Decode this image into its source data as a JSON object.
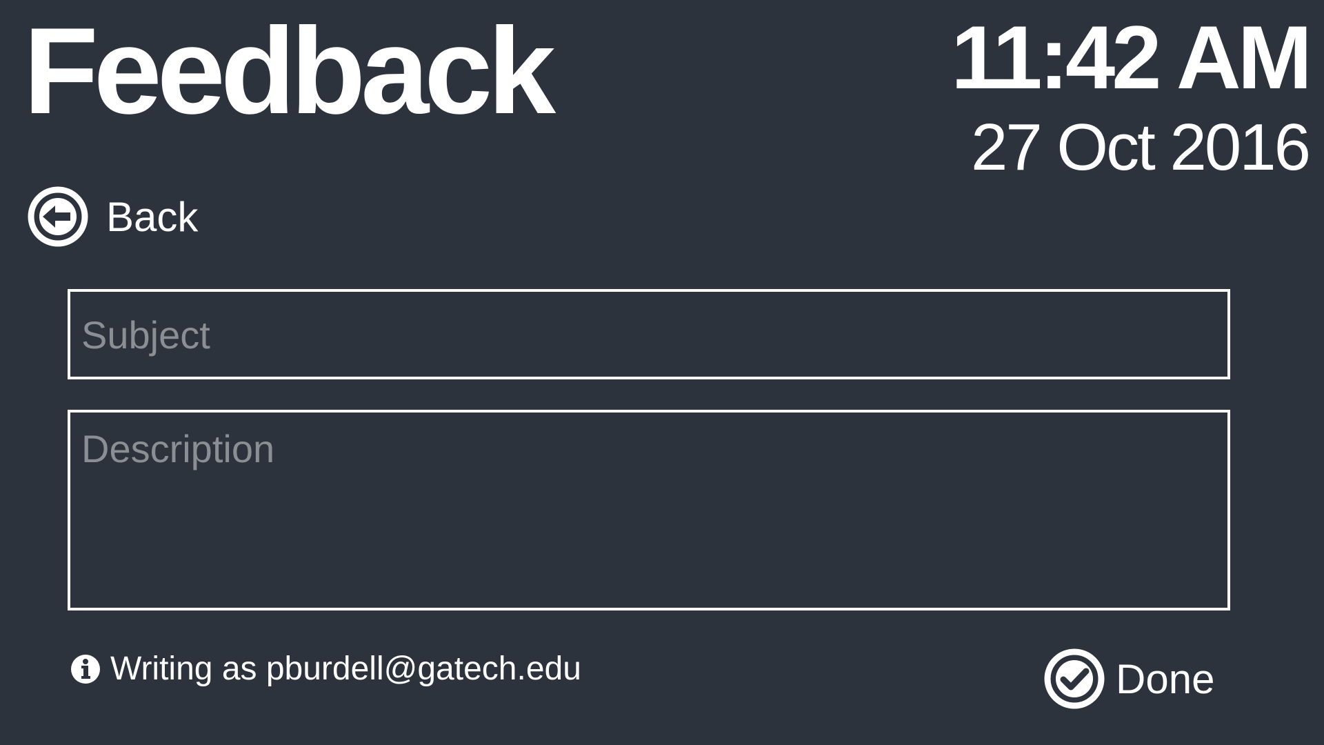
{
  "header": {
    "title": "Feedback",
    "time": "11:42 AM",
    "date": "27 Oct 2016"
  },
  "nav": {
    "back_label": "Back",
    "back_icon": "arrow-left-circle-icon"
  },
  "form": {
    "subject_placeholder": "Subject",
    "subject_value": "",
    "description_placeholder": "Description",
    "description_value": ""
  },
  "footer": {
    "account_note": "Writing as pburdell@gatech.edu",
    "info_icon": "info-icon",
    "done_label": "Done",
    "done_icon": "checkmark-circle-icon"
  },
  "colors": {
    "background": "#2c333c",
    "foreground": "#ffffff",
    "placeholder": "#8a8f94"
  }
}
